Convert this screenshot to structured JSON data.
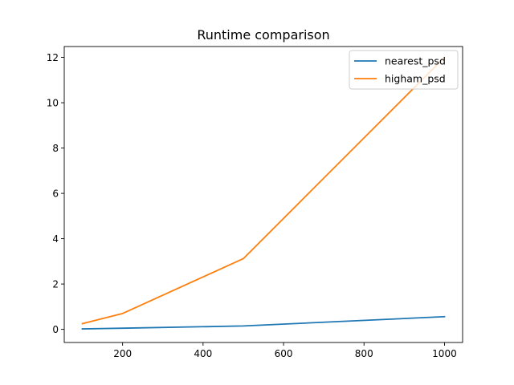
{
  "chart_data": {
    "type": "line",
    "title": "Runtime comparison",
    "xlabel": "",
    "ylabel": "",
    "xlim": [
      55,
      1045
    ],
    "ylim": [
      -0.58,
      12.48
    ],
    "xticks": [
      200,
      400,
      600,
      800,
      1000
    ],
    "yticks": [
      0,
      2,
      4,
      6,
      8,
      10,
      12
    ],
    "x": [
      100,
      200,
      500,
      1000
    ],
    "series": [
      {
        "name": "nearest_psd",
        "color": "#1f77b4",
        "values": [
          0.02,
          0.05,
          0.15,
          0.56
        ]
      },
      {
        "name": "higham_psd",
        "color": "#ff7f0e",
        "values": [
          0.25,
          0.7,
          3.12,
          12.0
        ]
      }
    ],
    "legend": "top-right",
    "grid": false
  }
}
